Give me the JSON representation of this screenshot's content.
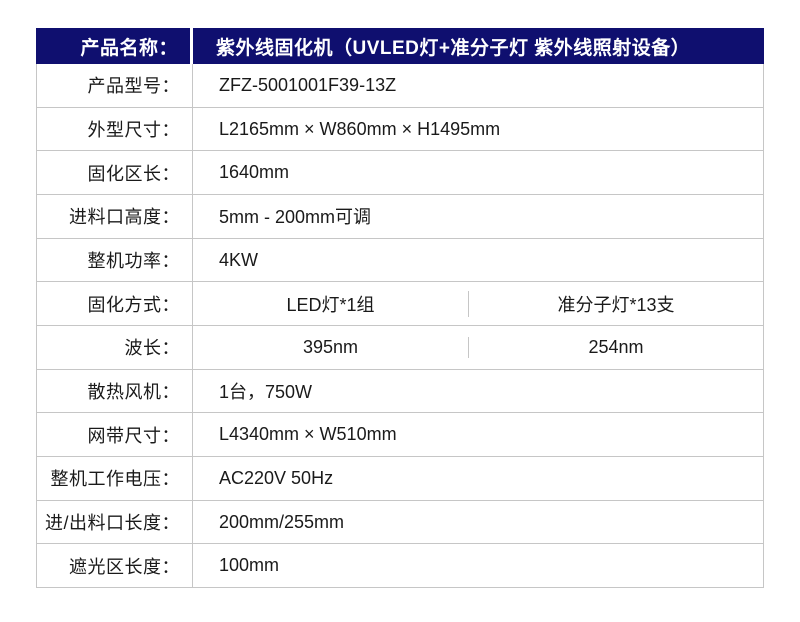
{
  "table": {
    "header": {
      "label": "产品名称：",
      "value": "紫外线固化机（UVLED灯+准分子灯 紫外线照射设备）"
    },
    "rows": [
      {
        "label": "产品型号：",
        "value": "ZFZ-5001001F39-13Z"
      },
      {
        "label": "外型尺寸：",
        "value": "L2165mm × W860mm × H1495mm"
      },
      {
        "label": "固化区长：",
        "value": "1640mm"
      },
      {
        "label": "进料口高度：",
        "value": "5mm - 200mm可调"
      },
      {
        "label": "整机功率：",
        "value": "4KW"
      },
      {
        "label": "固化方式：",
        "values": [
          "LED灯*1组",
          "准分子灯*13支"
        ]
      },
      {
        "label": "波长：",
        "values": [
          "395nm",
          "254nm"
        ]
      },
      {
        "label": "散热风机：",
        "value": "1台，750W"
      },
      {
        "label": "网带尺寸：",
        "value": "L4340mm × W510mm"
      },
      {
        "label": "整机工作电压：",
        "value": "AC220V 50Hz"
      },
      {
        "label": "进/出料口长度：",
        "value": "200mm/255mm"
      },
      {
        "label": "遮光区长度：",
        "value": "100mm"
      }
    ],
    "colors": {
      "header_bg": "#0f0f6f",
      "header_text": "#ffffff",
      "border": "#c6c6c6",
      "body_text": "#1a1a1a",
      "background": "#ffffff"
    }
  }
}
